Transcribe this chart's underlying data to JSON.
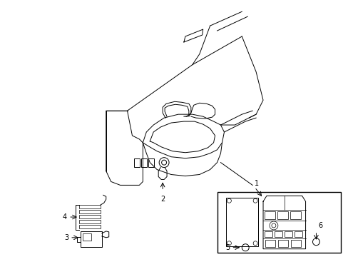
{
  "bg_color": "#ffffff",
  "line_color": "#000000",
  "fig_width": 4.89,
  "fig_height": 3.6,
  "dpi": 100,
  "lw": 0.7,
  "fs": 7
}
